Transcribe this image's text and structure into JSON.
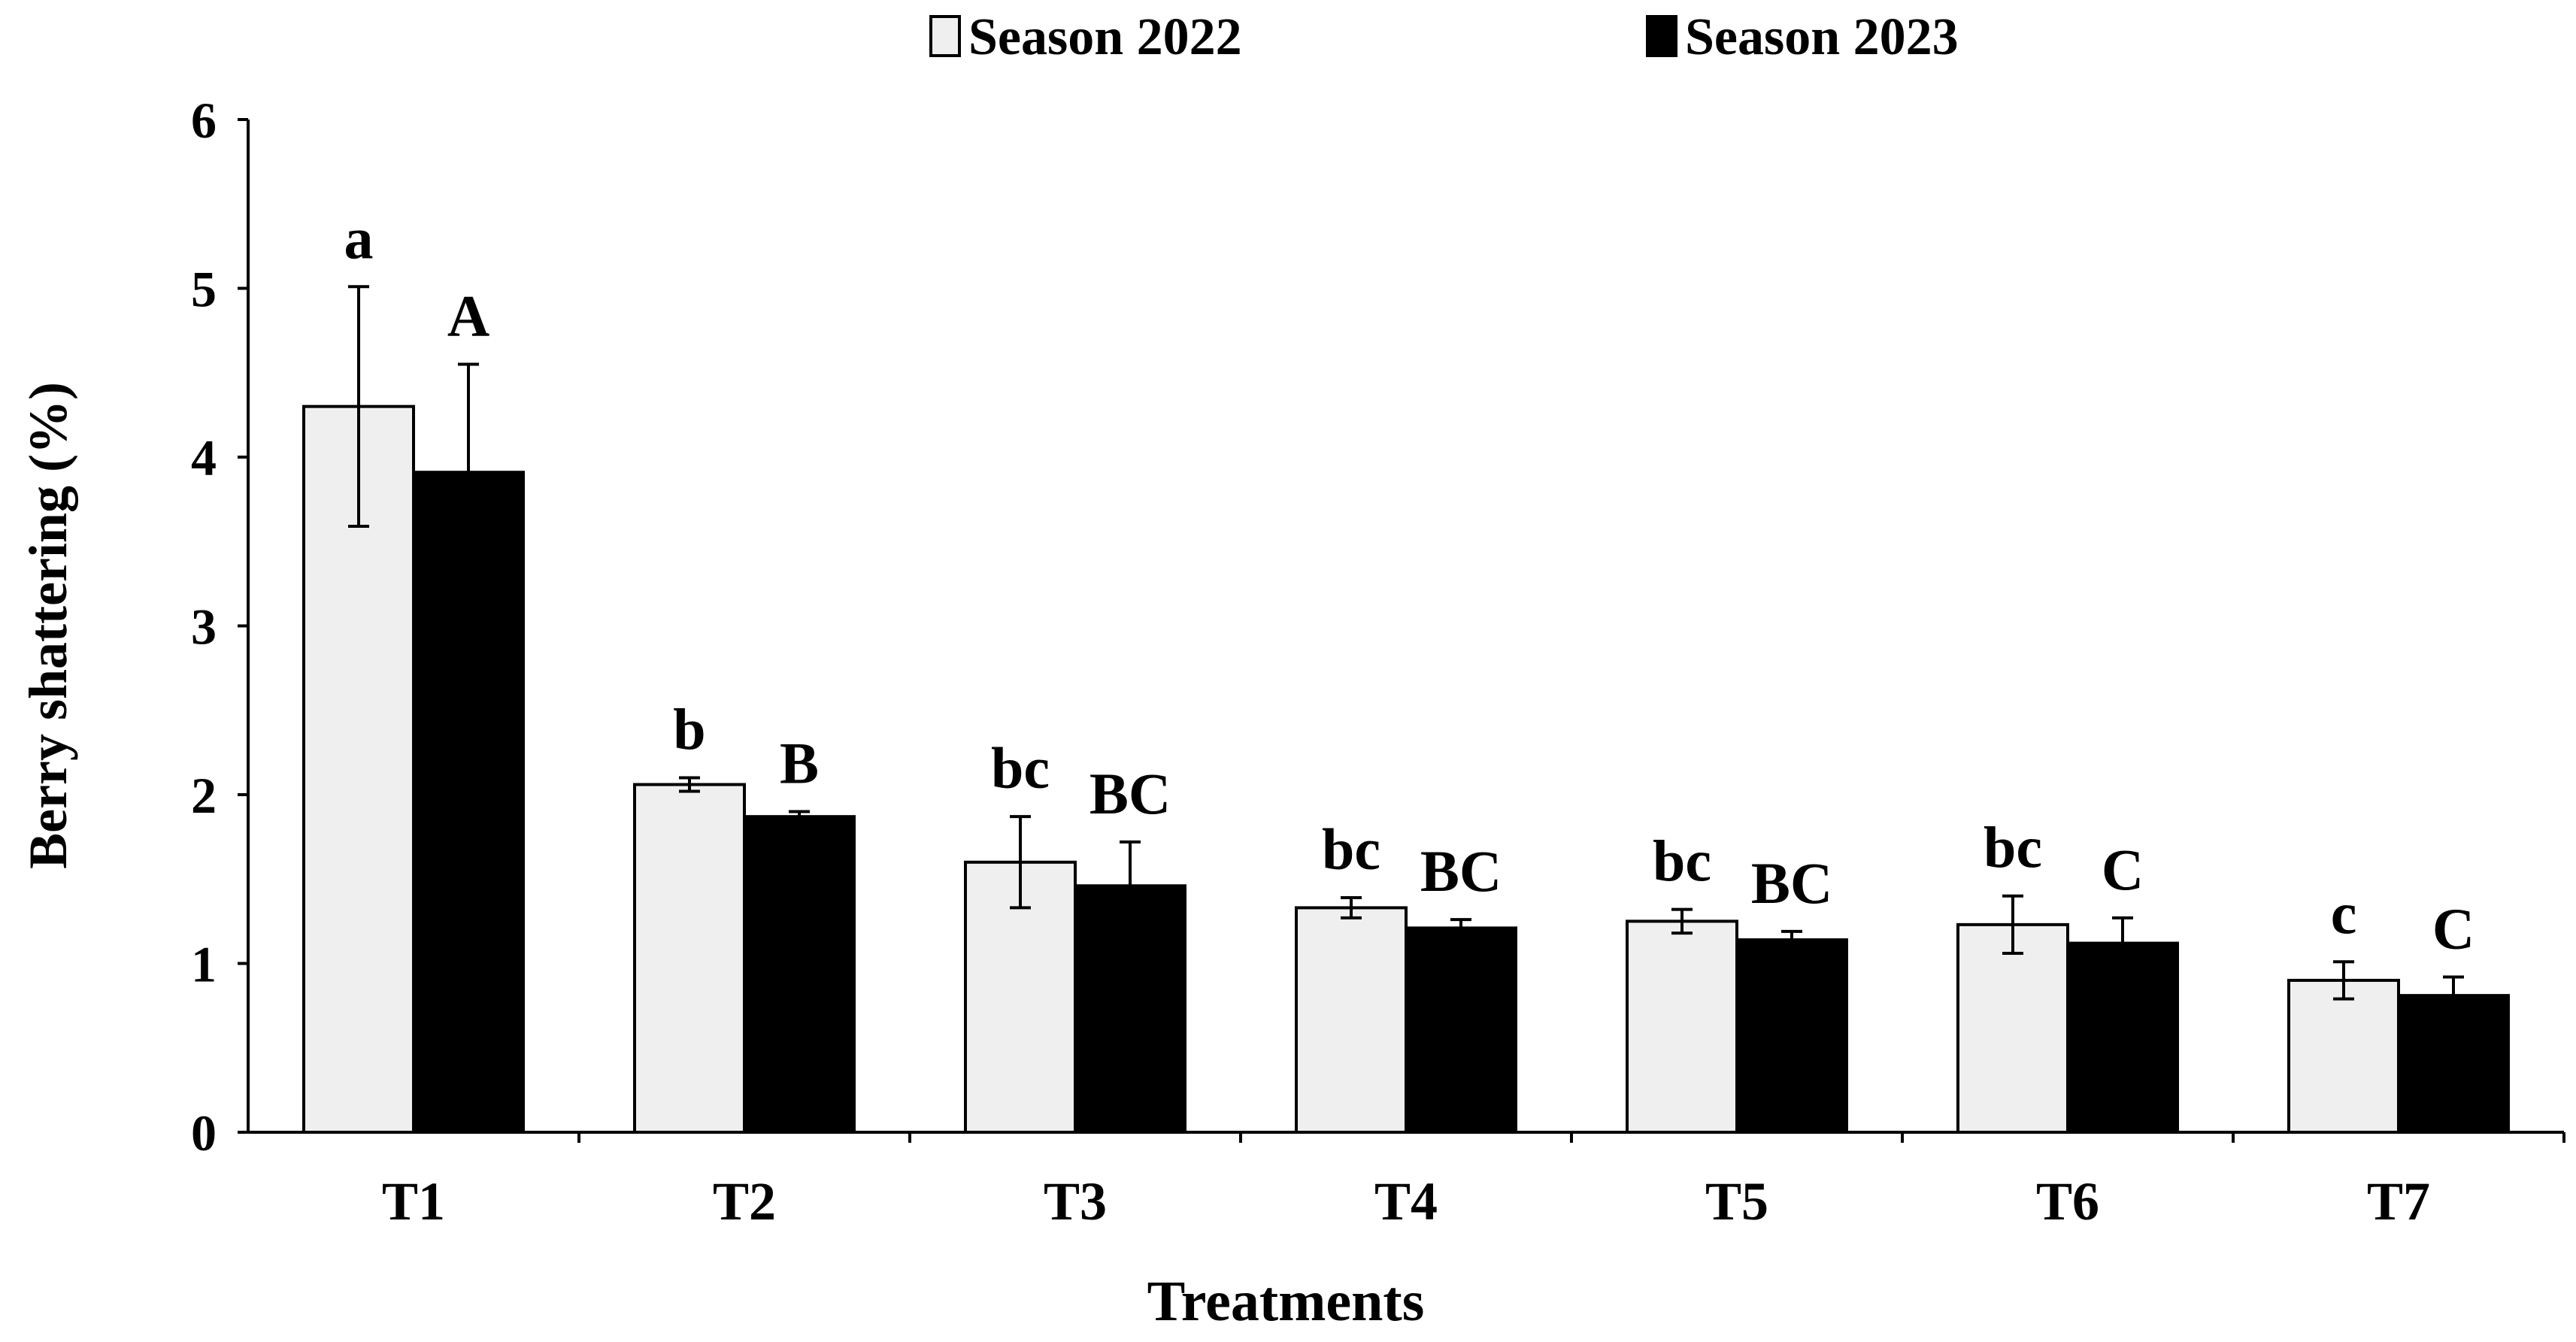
{
  "chart_data": {
    "type": "bar",
    "title": "",
    "xlabel": "Treatments",
    "ylabel": "Berry shattering (%)",
    "ylim": [
      0,
      6
    ],
    "yticks": [
      "0",
      "1",
      "2",
      "3",
      "4",
      "5",
      "6"
    ],
    "legend_position": "top",
    "grid": false,
    "categories": [
      "T1",
      "T2",
      "T3",
      "T4",
      "T5",
      "T6",
      "T7"
    ],
    "series": [
      {
        "name": "Season 2022",
        "color": "#efefef",
        "values": [
          4.3,
          2.06,
          1.6,
          1.33,
          1.25,
          1.23,
          0.9
        ],
        "errors": [
          0.71,
          0.04,
          0.27,
          0.06,
          0.07,
          0.17,
          0.11
        ],
        "letters": [
          "a",
          "b",
          "bc",
          "bc",
          "bc",
          "bc",
          "c"
        ]
      },
      {
        "name": "Season 2023",
        "color": "#000000",
        "values": [
          3.91,
          1.87,
          1.46,
          1.21,
          1.14,
          1.12,
          0.81
        ],
        "errors": [
          0.64,
          0.03,
          0.26,
          0.05,
          0.05,
          0.15,
          0.11
        ],
        "letters": [
          "A",
          "B",
          "BC",
          "BC",
          "BC",
          "C",
          "C"
        ]
      }
    ]
  }
}
